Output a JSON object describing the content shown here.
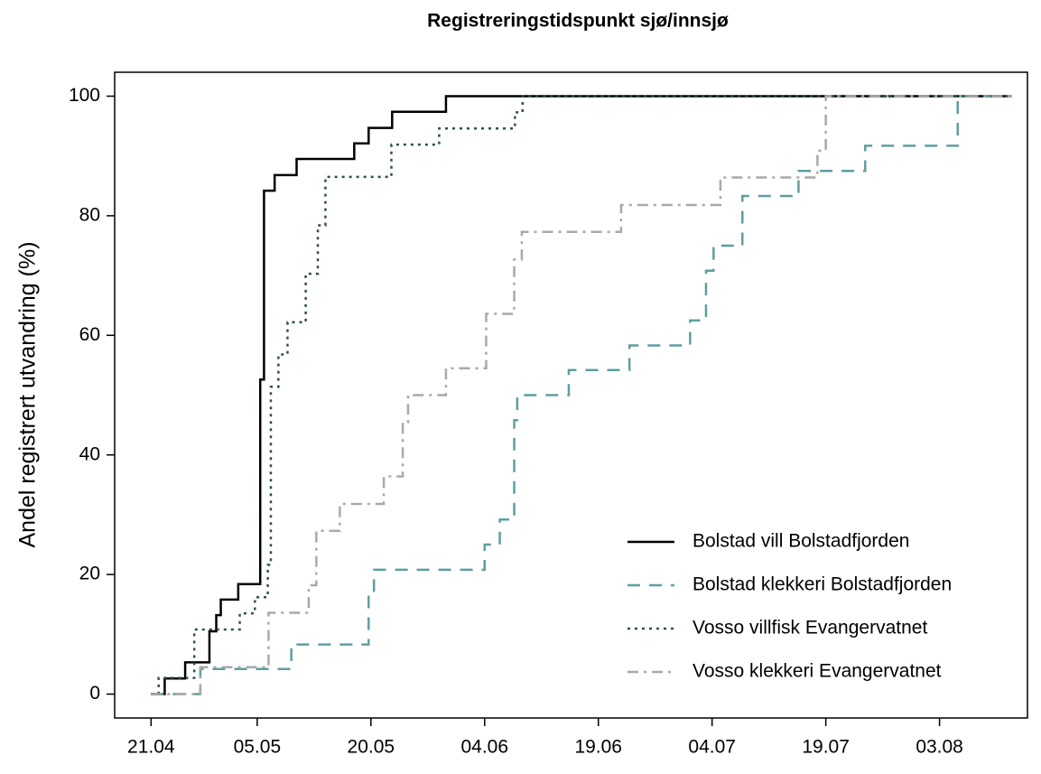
{
  "chart_data": {
    "type": "step",
    "title": "Registreringstidspunkt sjø/innsjø",
    "y_label": "Andel registrert utvandring (%)",
    "xlim": [
      -4.8,
      115.6
    ],
    "ylim": [
      -4,
      104
    ],
    "xticks": [
      {
        "value": 0,
        "label": "21.04"
      },
      {
        "value": 14,
        "label": "05.05"
      },
      {
        "value": 29,
        "label": "20.05"
      },
      {
        "value": 44,
        "label": "04.06"
      },
      {
        "value": 59,
        "label": "19.06"
      },
      {
        "value": 74,
        "label": "04.07"
      },
      {
        "value": 89,
        "label": "19.07"
      },
      {
        "value": 104,
        "label": "03.08"
      }
    ],
    "yticks": [
      0,
      20,
      40,
      60,
      80,
      100
    ],
    "grid": false,
    "legend": "bottom-right",
    "series": [
      {
        "name": "Bolstad vill Bolstadfjorden",
        "color": "#000000",
        "linestyle": "solid",
        "x": [
          0,
          1.8,
          4.5,
          7.7,
          8.6,
          9.2,
          11.5,
          14.4,
          14.9,
          16.3,
          19.2,
          26.8,
          28.7,
          31.8,
          38.9,
          113.5
        ],
        "values": [
          0,
          2.6,
          5.3,
          10.5,
          13.2,
          15.8,
          18.4,
          52.6,
          84.2,
          86.8,
          89.5,
          92.1,
          94.7,
          97.4,
          100,
          100
        ]
      },
      {
        "name": "Bolstad klekkeri Bolstadfjorden",
        "color": "#5f9ea0",
        "linestyle": "dashed",
        "x": [
          0,
          6.5,
          18.5,
          28.7,
          29.4,
          44,
          46,
          47.9,
          48.3,
          55.1,
          63.1,
          71.1,
          73.2,
          74.2,
          78,
          85.4,
          94.2,
          106.4,
          113.5
        ],
        "values": [
          0,
          4.2,
          8.3,
          16.7,
          20.8,
          25,
          29.2,
          45.8,
          50,
          54.2,
          58.3,
          62.5,
          70.8,
          75,
          83.3,
          87.5,
          91.7,
          100,
          100
        ]
      },
      {
        "name": "Vosso villfisk Evangervatnet",
        "color": "#2f4f4f",
        "linestyle": "dotted",
        "x": [
          0,
          1,
          5.7,
          11.7,
          13.7,
          15.4,
          15.8,
          16.8,
          18,
          20.4,
          22,
          23,
          31.7,
          38,
          48,
          49,
          113.5
        ],
        "values": [
          0,
          2.7,
          10.8,
          13.5,
          16.2,
          21.6,
          51.4,
          56.8,
          62.2,
          70.3,
          78.4,
          86.5,
          91.9,
          94.6,
          97.3,
          100,
          100
        ]
      },
      {
        "name": "Vosso klekkeri Evangervatnet",
        "color": "#a9a9a9",
        "linestyle": "dashdot",
        "x": [
          0,
          6.5,
          15.5,
          20.8,
          21.8,
          24.9,
          30.7,
          33.2,
          33.9,
          38.9,
          44.2,
          47.9,
          48.9,
          62,
          75.1,
          87.9,
          89,
          113.5
        ],
        "values": [
          0,
          4.5,
          13.6,
          18.2,
          27.3,
          31.8,
          36.4,
          45.5,
          50,
          54.5,
          63.6,
          72.7,
          77.3,
          81.8,
          86.4,
          90.9,
          100,
          100
        ]
      }
    ]
  }
}
